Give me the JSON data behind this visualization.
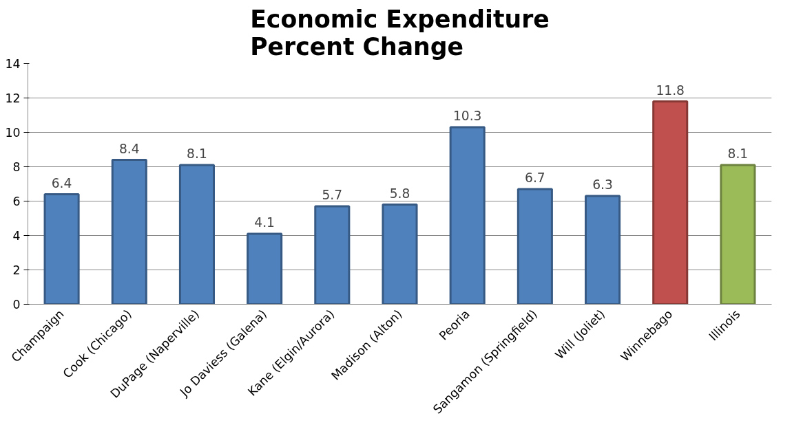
{
  "chart_data": {
    "type": "bar",
    "title": "Economic Expenditure\nPercent Change",
    "categories": [
      "Champaign",
      "Cook (Chicago)",
      "DuPage (Naperville)",
      "Jo Daviess (Galena)",
      "Kane (Elgin/Aurora)",
      "Madison (Alton)",
      "Peoria",
      "Sangamon (Springfield)",
      "Will (Joliet)",
      "Winnebago",
      "Illinois"
    ],
    "values": [
      6.4,
      8.4,
      8.1,
      4.1,
      5.7,
      5.8,
      10.3,
      6.7,
      6.3,
      11.8,
      8.1
    ],
    "colors": [
      "#4f81bd",
      "#4f81bd",
      "#4f81bd",
      "#4f81bd",
      "#4f81bd",
      "#4f81bd",
      "#4f81bd",
      "#4f81bd",
      "#4f81bd",
      "#c0504d",
      "#9bbb59"
    ],
    "ylim": [
      0,
      14
    ],
    "yticks": [
      0,
      2,
      4,
      6,
      8,
      10,
      12,
      14
    ],
    "grid": "y",
    "data_labels": true
  }
}
